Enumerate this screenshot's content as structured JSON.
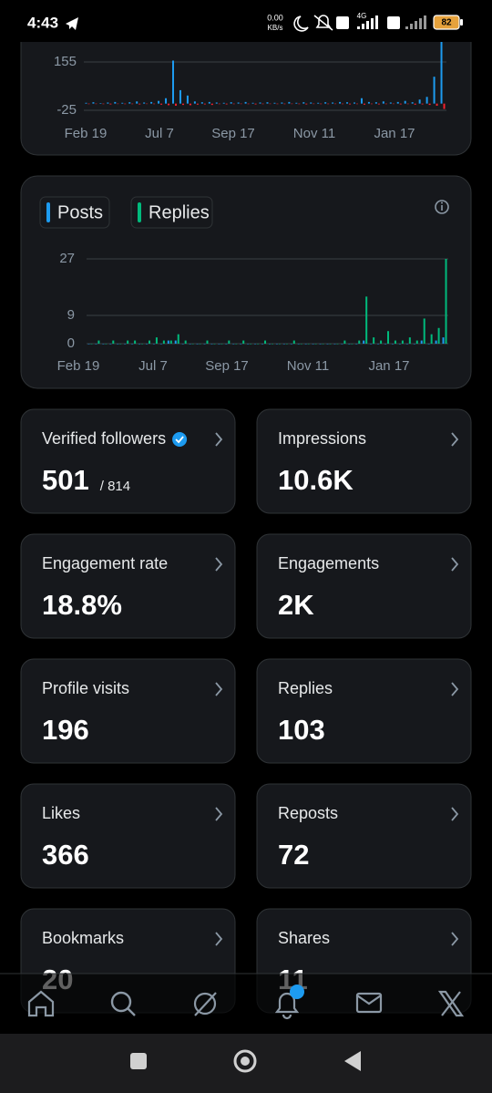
{
  "status_bar": {
    "time": "4:43",
    "net_speed": "0.00",
    "net_unit": "KB/s",
    "network": "4G",
    "battery": "82"
  },
  "chart_data": [
    {
      "type": "bar",
      "ylim": [
        -30,
        226
      ],
      "yticks": [
        155,
        -25
      ],
      "x_labels": [
        "Feb 19",
        "Jul 7",
        "Sep 17",
        "Nov 11",
        "Jan 17"
      ],
      "series": [
        {
          "color": "#1d9bf0",
          "values": [
            3,
            5,
            2,
            4,
            6,
            3,
            5,
            8,
            4,
            6,
            10,
            20,
            160,
            50,
            30,
            8,
            5,
            6,
            4,
            3,
            5,
            4,
            6,
            3,
            4,
            5,
            3,
            4,
            6,
            3,
            5,
            4,
            3,
            5,
            4,
            6,
            5,
            4,
            20,
            6,
            5,
            8,
            4,
            6,
            10,
            5,
            15,
            25,
            100,
            230
          ]
        },
        {
          "color": "#f4212e",
          "values": [
            -2,
            -1,
            -2,
            -3,
            -1,
            -2,
            -2,
            -3,
            -1,
            -2,
            -4,
            -6,
            -8,
            -5,
            -6,
            -4,
            -3,
            -5,
            -2,
            -3,
            -2,
            -1,
            -2,
            -3,
            -2,
            -1,
            -2,
            -2,
            -1,
            -2,
            -3,
            -1,
            -2,
            -2,
            -1,
            -2,
            -3,
            -2,
            -4,
            -2,
            -3,
            -2,
            -1,
            -3,
            -2,
            -4,
            -3,
            -5,
            -8,
            -20
          ]
        }
      ]
    },
    {
      "type": "bar",
      "ylim": [
        0,
        27
      ],
      "yticks": [
        27,
        9,
        0
      ],
      "x_labels": [
        "Feb 19",
        "Jul 7",
        "Sep 17",
        "Nov 11",
        "Jan 17"
      ],
      "series": [
        {
          "name": "Posts",
          "color": "#1d9bf0",
          "values": [
            0,
            0,
            0,
            0,
            0,
            0,
            0,
            0,
            0,
            0,
            0,
            1,
            1,
            0,
            0,
            0,
            0,
            0,
            0,
            0,
            0,
            0,
            0,
            0,
            0,
            0,
            0,
            0,
            0,
            0,
            0,
            0,
            0,
            0,
            0,
            0,
            0,
            0,
            1,
            0,
            0,
            0,
            0,
            0,
            0,
            0,
            1,
            0,
            1,
            2
          ]
        },
        {
          "name": "Replies",
          "color": "#00ba7c",
          "values": [
            0,
            1,
            0,
            1,
            0,
            1,
            1,
            0,
            1,
            2,
            1,
            1,
            3,
            1,
            0,
            0,
            1,
            0,
            0,
            1,
            0,
            1,
            0,
            0,
            1,
            0,
            0,
            0,
            1,
            0,
            0,
            0,
            0,
            0,
            0,
            1,
            0,
            1,
            15,
            2,
            1,
            4,
            1,
            1,
            2,
            1,
            8,
            3,
            5,
            27
          ]
        }
      ]
    }
  ],
  "stats": [
    {
      "label": "Verified followers",
      "value": "501",
      "total": "/ 814"
    },
    {
      "label": "Impressions",
      "value": "10.6K"
    },
    {
      "label": "Engagement rate",
      "value": "18.8%"
    },
    {
      "label": "Engagements",
      "value": "2K"
    },
    {
      "label": "Profile visits",
      "value": "196"
    },
    {
      "label": "Replies",
      "value": "103"
    },
    {
      "label": "Likes",
      "value": "366"
    },
    {
      "label": "Reposts",
      "value": "72"
    },
    {
      "label": "Bookmarks",
      "value": "20"
    },
    {
      "label": "Shares",
      "value": "11"
    }
  ]
}
